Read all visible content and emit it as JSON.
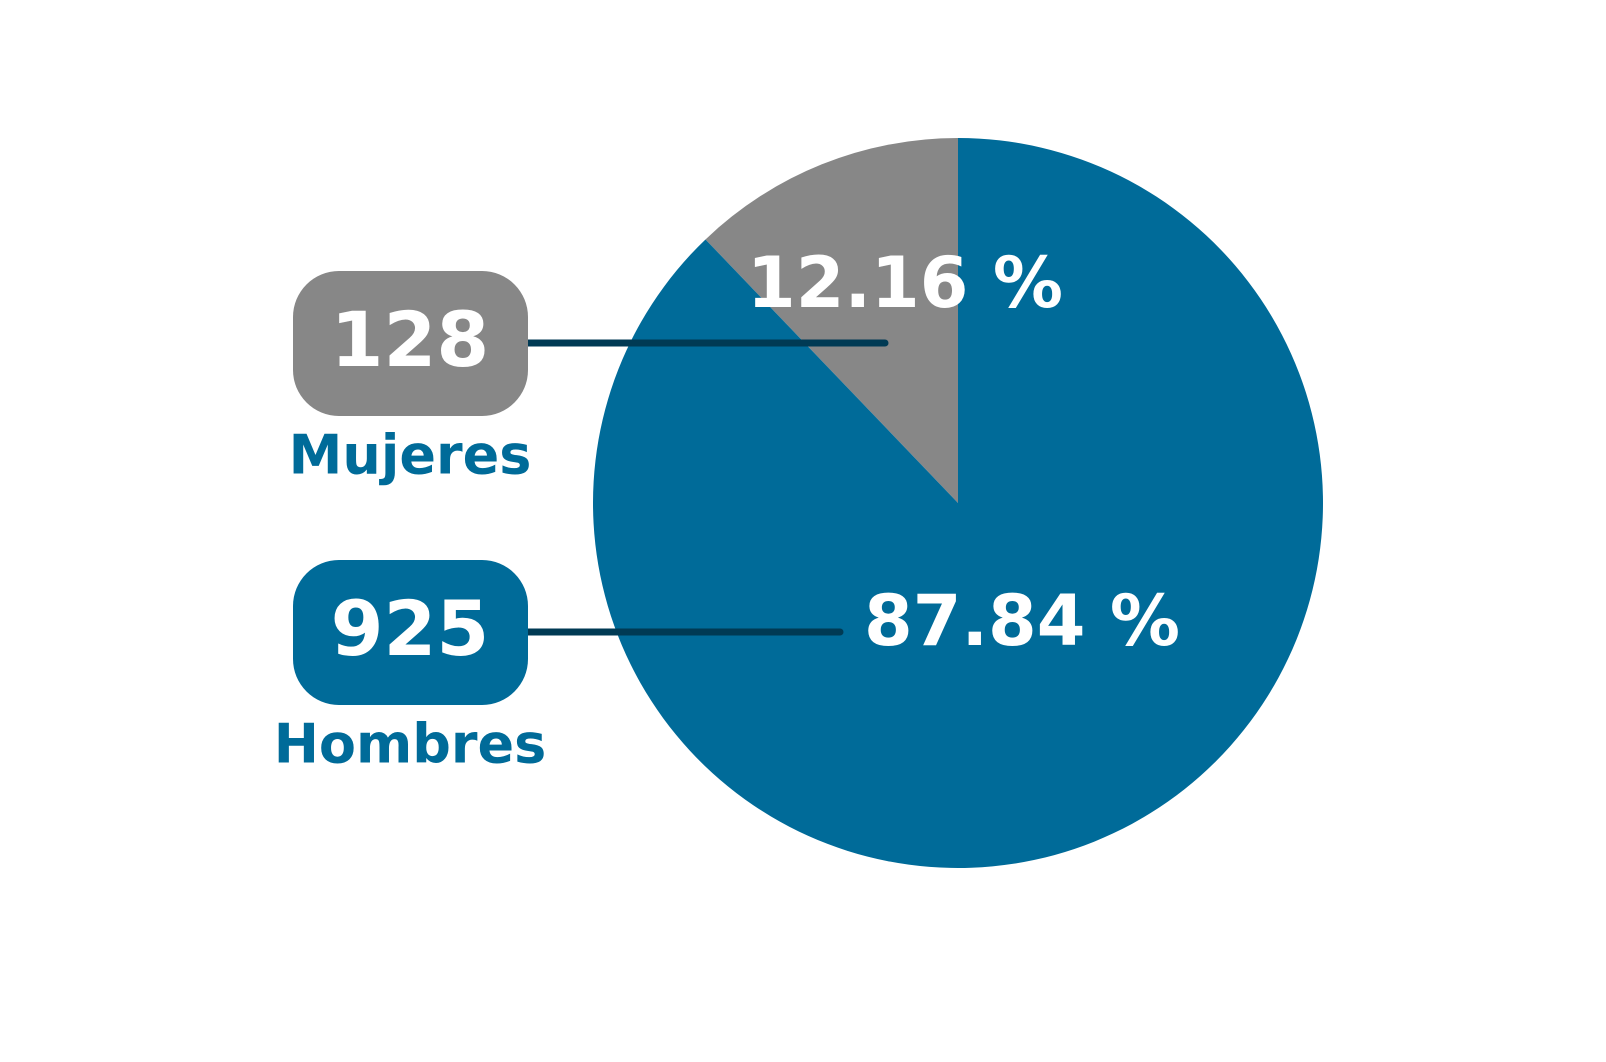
{
  "chart_data": {
    "type": "pie",
    "categories": [
      "Mujeres",
      "Hombres"
    ],
    "values": [
      12.16,
      87.84
    ],
    "value_labels": [
      "12.16 %",
      "87.84 %"
    ],
    "counts": [
      128,
      925
    ],
    "colors": [
      "#878787",
      "#006b99"
    ]
  }
}
